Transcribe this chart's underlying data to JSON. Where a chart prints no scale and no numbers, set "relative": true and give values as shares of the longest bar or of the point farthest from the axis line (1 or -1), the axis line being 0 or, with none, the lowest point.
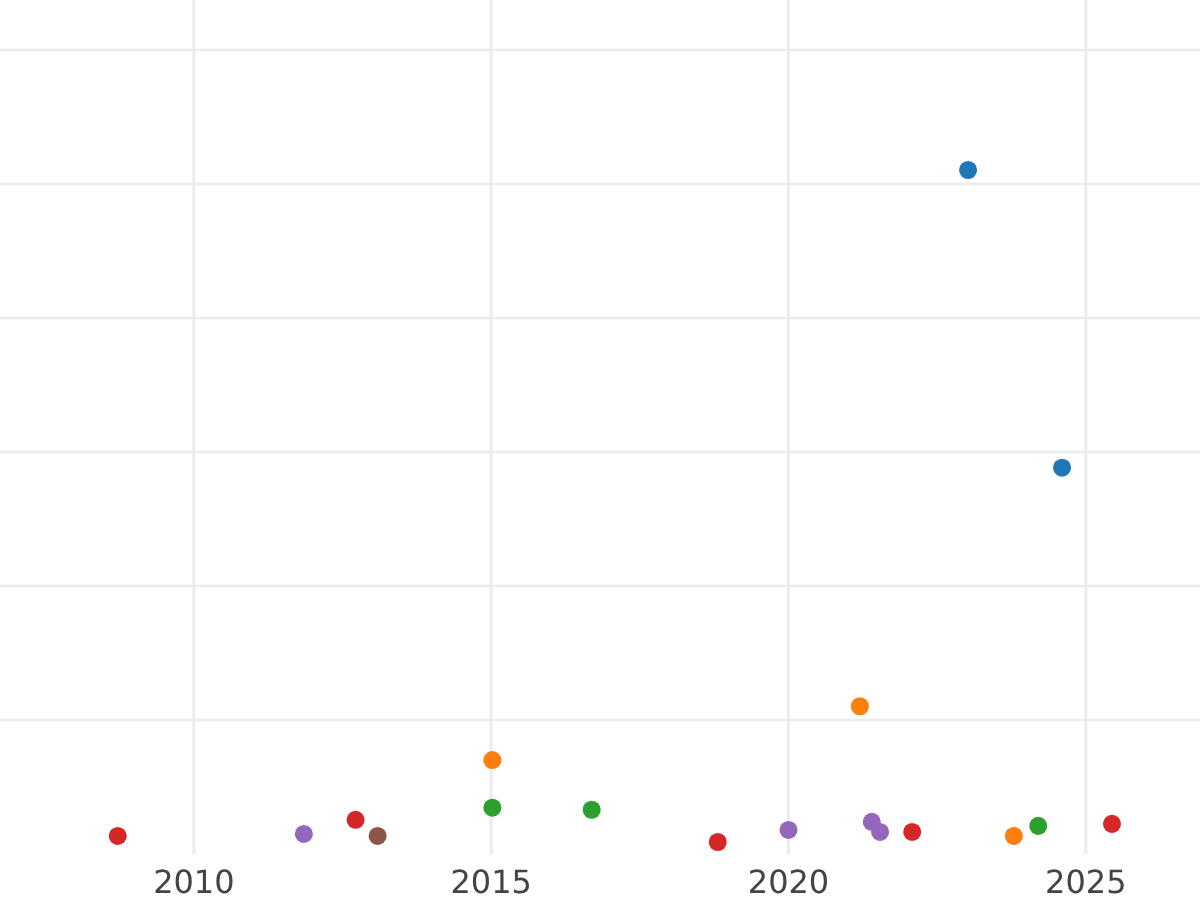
{
  "chart_data": {
    "type": "scatter",
    "relative": true,
    "xlim": [
      2006.74,
      2026.92
    ],
    "xticks": [
      2010,
      2015,
      2020,
      2025
    ],
    "tick_labels": "x",
    "grid": true,
    "marker": "circle",
    "series": [
      {
        "color": "#1f77b4",
        "x": [
          2023.02,
          2024.6
        ],
        "values": [
          1,
          0.557
        ]
      },
      {
        "color": "#ff7f0e",
        "x": [
          2015.02,
          2021.2,
          2023.79
        ],
        "values": [
          0.122,
          0.202,
          0.009
        ]
      },
      {
        "color": "#2ca02c",
        "x": [
          2015.02,
          2016.69,
          2024.2
        ],
        "values": [
          0.051,
          0.048,
          0.024
        ]
      },
      {
        "color": "#d62728",
        "x": [
          2008.72,
          2012.72,
          2018.81,
          2022.08,
          2025.44
        ],
        "values": [
          0.009,
          0.033,
          0,
          0.015,
          0.027
        ]
      },
      {
        "color": "#9467bd",
        "x": [
          2011.85,
          2020.0,
          2021.4,
          2021.54
        ],
        "values": [
          0.012,
          0.018,
          0.03,
          0.015
        ]
      },
      {
        "color": "#8c564b",
        "x": [
          2013.09
        ],
        "values": [
          0.009
        ]
      }
    ]
  }
}
